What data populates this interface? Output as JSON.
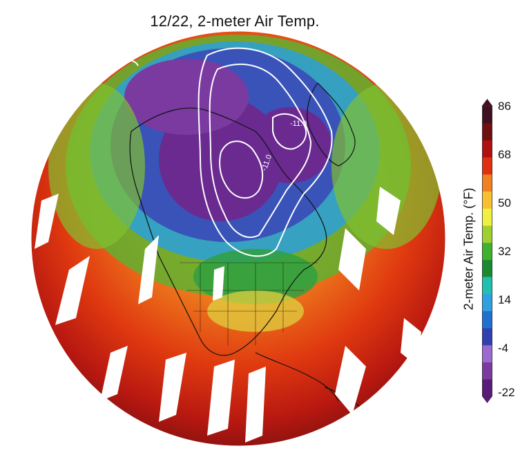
{
  "title": "12/22, 2-meter Air Temp.",
  "colorbar": {
    "label": "2-meter Air Temp. (°F)",
    "ticks": [
      "86",
      "68",
      "50",
      "32",
      "14",
      "-4",
      "-22"
    ],
    "min": -22,
    "max": 86,
    "colors": [
      "#5a1a7a",
      "#7a3aa0",
      "#9a6ad0",
      "#3040b0",
      "#2070d0",
      "#30a0e0",
      "#20c0b0",
      "#1a8a30",
      "#40b030",
      "#a0d030",
      "#f0f040",
      "#f8c030",
      "#f08020",
      "#e03010",
      "#b01010",
      "#701010",
      "#401020"
    ]
  },
  "contours": {
    "label": "-11.0"
  }
}
